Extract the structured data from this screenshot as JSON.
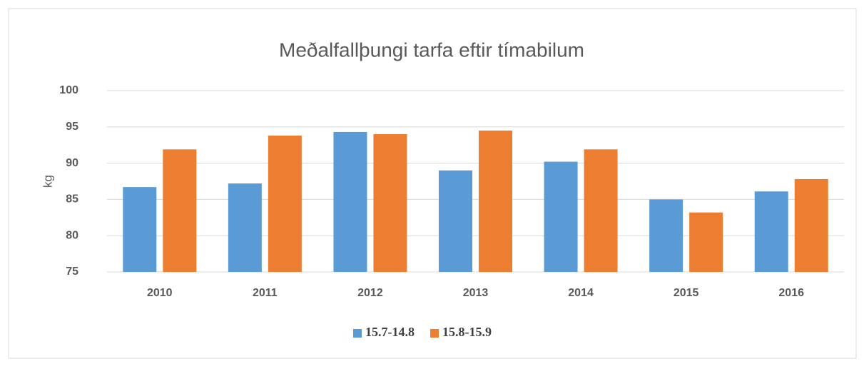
{
  "chart_data": {
    "type": "bar",
    "title": "Meðalfallþungi tarfa eftir tímabilum",
    "y_label": "kg",
    "categories": [
      "2010",
      "2011",
      "2012",
      "2013",
      "2014",
      "2015",
      "2016"
    ],
    "series": [
      {
        "name": "15.7-14.8",
        "color": "#5b9bd5",
        "values": [
          86.7,
          87.2,
          94.3,
          89.0,
          90.2,
          85.0,
          86.1
        ]
      },
      {
        "name": "15.8-15.9",
        "color": "#ed7d31",
        "values": [
          91.9,
          93.8,
          94.0,
          94.5,
          91.9,
          83.2,
          87.8
        ]
      }
    ],
    "ylim": [
      75,
      100
    ],
    "yticks": [
      75,
      80,
      85,
      90,
      95,
      100
    ],
    "grid": true,
    "legend": "bottom"
  }
}
